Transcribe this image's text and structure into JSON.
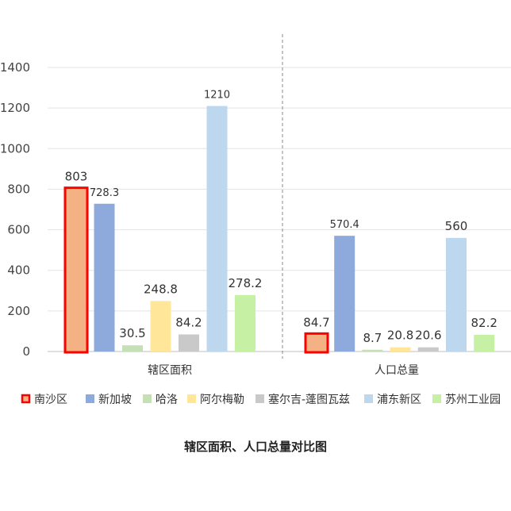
{
  "chart_data": {
    "type": "bar",
    "title": "辖区面积、人口总量对比图",
    "categories": [
      "辖区面积",
      "人口总量"
    ],
    "ylim": [
      0,
      1400
    ],
    "yticks": [
      0,
      200,
      400,
      600,
      800,
      1000,
      1200,
      1400
    ],
    "grid": true,
    "legend_position": "bottom",
    "highlight_series": "南沙区",
    "series": [
      {
        "name": "南沙区",
        "color": "#F4B183",
        "values": [
          803,
          84.7
        ],
        "labels": [
          "803",
          "84.7"
        ]
      },
      {
        "name": "新加坡",
        "color": "#8EA9DB",
        "values": [
          728.3,
          570.4
        ],
        "labels": [
          "728.3",
          "570.4"
        ]
      },
      {
        "name": "哈洛",
        "color": "#C5E0B4",
        "values": [
          30.5,
          8.7
        ],
        "labels": [
          "30.5",
          "8.7"
        ]
      },
      {
        "name": "阿尔梅勒",
        "color": "#FFE699",
        "values": [
          248.8,
          20.8
        ],
        "labels": [
          "248.8",
          "20.8"
        ]
      },
      {
        "name": "塞尔吉-蓬图瓦兹",
        "color": "#C9C9C9",
        "values": [
          84.2,
          20.6
        ],
        "labels": [
          "84.2",
          "20.6"
        ]
      },
      {
        "name": "浦东新区",
        "color": "#BDD7EE",
        "values": [
          1210,
          null
        ],
        "labels": [
          "1210",
          ""
        ]
      },
      {
        "name": "苏州工业园",
        "color": "#C6F0A4",
        "values": [
          278.2,
          82.2
        ],
        "labels": [
          "278.2",
          "82.2"
        ]
      }
    ],
    "extra_bars": [
      {
        "category": "人口总量",
        "slot": 5,
        "color": "#BDD7EE",
        "value": 560,
        "label": "560"
      }
    ],
    "highlight_color": "#FF0000"
  }
}
